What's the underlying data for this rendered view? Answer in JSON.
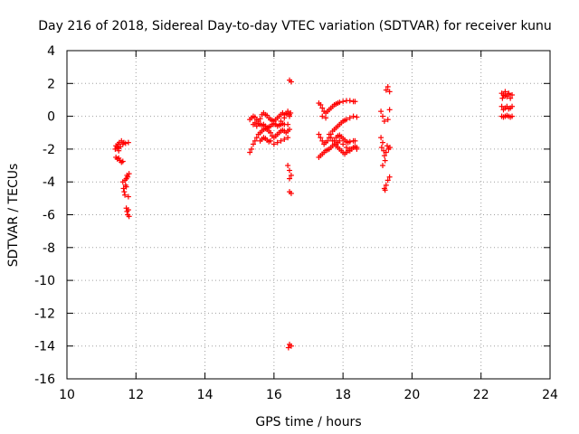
{
  "chart_data": {
    "type": "scatter",
    "title": "Day 216 of 2018, Sidereal Day-to-day VTEC variation (SDTVAR) for receiver kunu",
    "xlabel": "GPS time / hours",
    "ylabel": "SDTVAR / TECUs",
    "xlim": [
      10,
      24
    ],
    "ylim": [
      -16,
      4
    ],
    "x_ticks": [
      10,
      12,
      14,
      16,
      18,
      20,
      22,
      24
    ],
    "y_ticks": [
      -16,
      -14,
      -12,
      -10,
      -8,
      -6,
      -4,
      -2,
      0,
      2,
      4
    ],
    "grid": true,
    "marker": "+",
    "color": "#ff0000",
    "series": [
      {
        "name": "SDTVAR",
        "points": [
          [
            11.4,
            -2.0
          ],
          [
            11.42,
            -1.8
          ],
          [
            11.45,
            -1.9
          ],
          [
            11.48,
            -1.7
          ],
          [
            11.5,
            -1.95
          ],
          [
            11.52,
            -1.6
          ],
          [
            11.55,
            -1.85
          ],
          [
            11.58,
            -1.5
          ],
          [
            11.62,
            -1.7
          ],
          [
            11.65,
            -1.6
          ],
          [
            11.7,
            -1.65
          ],
          [
            11.78,
            -1.6
          ],
          [
            11.5,
            -2.1
          ],
          [
            11.42,
            -2.5
          ],
          [
            11.46,
            -2.6
          ],
          [
            11.5,
            -2.55
          ],
          [
            11.54,
            -2.7
          ],
          [
            11.58,
            -2.8
          ],
          [
            11.62,
            -2.75
          ],
          [
            11.62,
            -4.0
          ],
          [
            11.64,
            -4.4
          ],
          [
            11.66,
            -4.6
          ],
          [
            11.68,
            -3.9
          ],
          [
            11.7,
            -4.2
          ],
          [
            11.72,
            -3.8
          ],
          [
            11.74,
            -3.6
          ],
          [
            11.76,
            -3.7
          ],
          [
            11.78,
            -4.9
          ],
          [
            11.8,
            -3.5
          ],
          [
            11.68,
            -4.8
          ],
          [
            11.72,
            -4.3
          ],
          [
            11.72,
            -5.6
          ],
          [
            11.74,
            -5.8
          ],
          [
            11.76,
            -6.0
          ],
          [
            11.78,
            -5.7
          ],
          [
            11.8,
            -6.1
          ],
          [
            15.3,
            -2.2
          ],
          [
            15.35,
            -2.0
          ],
          [
            15.4,
            -1.7
          ],
          [
            15.45,
            -1.5
          ],
          [
            15.5,
            -1.3
          ],
          [
            15.55,
            -1.1
          ],
          [
            15.6,
            -1.0
          ],
          [
            15.65,
            -0.9
          ],
          [
            15.7,
            -0.8
          ],
          [
            15.75,
            -0.75
          ],
          [
            15.8,
            -0.8
          ],
          [
            15.85,
            -0.9
          ],
          [
            15.9,
            -1.0
          ],
          [
            15.95,
            -1.2
          ],
          [
            16.0,
            -1.3
          ],
          [
            16.05,
            -1.2
          ],
          [
            16.1,
            -1.1
          ],
          [
            16.15,
            -1.0
          ],
          [
            16.2,
            -0.9
          ],
          [
            16.25,
            -0.85
          ],
          [
            16.3,
            -0.9
          ],
          [
            16.35,
            -1.0
          ],
          [
            16.4,
            -0.9
          ],
          [
            16.45,
            -0.8
          ],
          [
            15.4,
            -0.5
          ],
          [
            15.45,
            -0.4
          ],
          [
            15.5,
            -0.6
          ],
          [
            15.55,
            -0.45
          ],
          [
            15.6,
            -0.5
          ],
          [
            15.65,
            -0.55
          ],
          [
            15.7,
            -0.5
          ],
          [
            15.75,
            -0.6
          ],
          [
            15.8,
            -0.7
          ],
          [
            15.85,
            -0.65
          ],
          [
            15.9,
            -0.6
          ],
          [
            15.95,
            -0.5
          ],
          [
            16.0,
            -0.45
          ],
          [
            16.05,
            -0.5
          ],
          [
            16.1,
            -0.6
          ],
          [
            16.15,
            -0.55
          ],
          [
            16.2,
            -0.5
          ],
          [
            16.25,
            -0.45
          ],
          [
            16.3,
            -0.5
          ],
          [
            16.4,
            -0.5
          ],
          [
            15.3,
            -0.2
          ],
          [
            15.35,
            -0.1
          ],
          [
            15.4,
            0.0
          ],
          [
            15.45,
            -0.05
          ],
          [
            15.5,
            -0.2
          ],
          [
            15.55,
            -0.3
          ],
          [
            15.6,
            -0.15
          ],
          [
            15.65,
            0.1
          ],
          [
            15.7,
            0.2
          ],
          [
            15.75,
            0.1
          ],
          [
            15.8,
            0.05
          ],
          [
            15.85,
            -0.1
          ],
          [
            15.9,
            -0.2
          ],
          [
            15.95,
            -0.25
          ],
          [
            16.0,
            -0.3
          ],
          [
            16.05,
            -0.2
          ],
          [
            16.1,
            -0.1
          ],
          [
            16.15,
            0.0
          ],
          [
            16.2,
            0.1
          ],
          [
            16.25,
            0.2
          ],
          [
            16.3,
            0.1
          ],
          [
            16.35,
            0.15
          ],
          [
            16.4,
            0.2
          ],
          [
            16.45,
            0.1
          ],
          [
            15.6,
            -1.5
          ],
          [
            15.65,
            -1.4
          ],
          [
            15.7,
            -1.3
          ],
          [
            15.75,
            -1.35
          ],
          [
            15.8,
            -1.45
          ],
          [
            15.85,
            -1.55
          ],
          [
            15.9,
            -1.5
          ],
          [
            16.0,
            -1.7
          ],
          [
            16.1,
            -1.6
          ],
          [
            16.2,
            -1.5
          ],
          [
            16.3,
            -1.4
          ],
          [
            16.4,
            -1.3
          ],
          [
            16.2,
            -0.3
          ],
          [
            16.3,
            -0.1
          ],
          [
            16.4,
            0.3
          ],
          [
            16.45,
            0.0
          ],
          [
            16.48,
            0.2
          ],
          [
            16.45,
            2.2
          ],
          [
            16.5,
            2.1
          ],
          [
            16.4,
            -3.0
          ],
          [
            16.45,
            -3.3
          ],
          [
            16.5,
            -3.6
          ],
          [
            16.45,
            -3.8
          ],
          [
            16.45,
            -4.6
          ],
          [
            16.5,
            -4.7
          ],
          [
            16.42,
            -14.1
          ],
          [
            16.45,
            -13.9
          ],
          [
            16.5,
            -14.0
          ],
          [
            17.3,
            0.8
          ],
          [
            17.35,
            0.7
          ],
          [
            17.4,
            0.5
          ],
          [
            17.45,
            0.3
          ],
          [
            17.5,
            0.2
          ],
          [
            17.55,
            0.3
          ],
          [
            17.6,
            0.4
          ],
          [
            17.65,
            0.5
          ],
          [
            17.7,
            0.6
          ],
          [
            17.75,
            0.7
          ],
          [
            17.8,
            0.75
          ],
          [
            17.85,
            0.8
          ],
          [
            17.9,
            0.85
          ],
          [
            18.0,
            0.9
          ],
          [
            18.1,
            0.95
          ],
          [
            18.2,
            0.95
          ],
          [
            18.3,
            0.9
          ],
          [
            18.35,
            0.9
          ],
          [
            17.4,
            0.0
          ],
          [
            17.5,
            -0.1
          ],
          [
            17.3,
            -1.1
          ],
          [
            17.35,
            -1.3
          ],
          [
            17.4,
            -1.5
          ],
          [
            17.45,
            -1.7
          ],
          [
            17.5,
            -1.6
          ],
          [
            17.55,
            -1.5
          ],
          [
            17.6,
            -1.3
          ],
          [
            17.65,
            -1.1
          ],
          [
            17.7,
            -0.9
          ],
          [
            17.75,
            -0.8
          ],
          [
            17.8,
            -0.7
          ],
          [
            17.85,
            -0.6
          ],
          [
            17.9,
            -0.5
          ],
          [
            17.95,
            -0.4
          ],
          [
            18.0,
            -0.3
          ],
          [
            18.05,
            -0.25
          ],
          [
            18.1,
            -0.2
          ],
          [
            18.2,
            -0.1
          ],
          [
            18.3,
            0.0
          ],
          [
            18.4,
            -0.05
          ],
          [
            17.3,
            -2.5
          ],
          [
            17.35,
            -2.4
          ],
          [
            17.4,
            -2.3
          ],
          [
            17.45,
            -2.2
          ],
          [
            17.5,
            -2.1
          ],
          [
            17.55,
            -2.05
          ],
          [
            17.6,
            -2.0
          ],
          [
            17.65,
            -1.9
          ],
          [
            17.7,
            -1.8
          ],
          [
            17.75,
            -1.5
          ],
          [
            17.8,
            -1.3
          ],
          [
            17.85,
            -1.2
          ],
          [
            17.9,
            -1.15
          ],
          [
            17.95,
            -1.25
          ],
          [
            18.0,
            -1.35
          ],
          [
            18.05,
            -1.45
          ],
          [
            18.1,
            -1.55
          ],
          [
            18.15,
            -1.6
          ],
          [
            18.2,
            -1.55
          ],
          [
            18.3,
            -1.5
          ],
          [
            18.35,
            -1.5
          ],
          [
            17.6,
            -1.1
          ],
          [
            17.65,
            -1.3
          ],
          [
            17.7,
            -1.5
          ],
          [
            17.75,
            -1.7
          ],
          [
            17.8,
            -1.8
          ],
          [
            17.85,
            -1.9
          ],
          [
            17.9,
            -2.0
          ],
          [
            17.95,
            -2.1
          ],
          [
            18.0,
            -2.2
          ],
          [
            18.05,
            -2.3
          ],
          [
            18.1,
            -2.2
          ],
          [
            18.15,
            -2.1
          ],
          [
            18.2,
            -2.0
          ],
          [
            18.25,
            -2.0
          ],
          [
            18.3,
            -1.9
          ],
          [
            18.35,
            -1.85
          ],
          [
            18.4,
            -1.9
          ],
          [
            17.8,
            -1.7
          ],
          [
            17.85,
            -1.6
          ],
          [
            17.9,
            -1.5
          ],
          [
            18.0,
            -1.7
          ],
          [
            18.1,
            -1.9
          ],
          [
            18.2,
            -2.1
          ],
          [
            18.4,
            -2.0
          ],
          [
            19.1,
            -1.3
          ],
          [
            19.15,
            -1.6
          ],
          [
            19.12,
            -1.9
          ],
          [
            19.18,
            -2.1
          ],
          [
            19.2,
            -2.4
          ],
          [
            19.22,
            -2.7
          ],
          [
            19.15,
            -3.0
          ],
          [
            19.25,
            -2.2
          ],
          [
            19.28,
            -1.8
          ],
          [
            19.32,
            -2.0
          ],
          [
            19.36,
            -1.9
          ],
          [
            19.1,
            0.3
          ],
          [
            19.15,
            0.0
          ],
          [
            19.2,
            -0.3
          ],
          [
            19.3,
            -0.2
          ],
          [
            19.35,
            0.4
          ],
          [
            19.25,
            1.6
          ],
          [
            19.3,
            1.8
          ],
          [
            19.35,
            1.5
          ],
          [
            19.2,
            -4.4
          ],
          [
            19.25,
            -4.2
          ],
          [
            19.3,
            -3.9
          ],
          [
            19.35,
            -3.7
          ],
          [
            19.22,
            -4.5
          ],
          [
            22.6,
            1.4
          ],
          [
            22.65,
            1.3
          ],
          [
            22.7,
            1.5
          ],
          [
            22.75,
            1.2
          ],
          [
            22.8,
            1.4
          ],
          [
            22.85,
            1.1
          ],
          [
            22.9,
            1.3
          ],
          [
            22.62,
            1.1
          ],
          [
            22.7,
            1.25
          ],
          [
            22.8,
            1.35
          ],
          [
            22.6,
            0.6
          ],
          [
            22.65,
            0.4
          ],
          [
            22.7,
            0.5
          ],
          [
            22.75,
            0.6
          ],
          [
            22.8,
            0.45
          ],
          [
            22.85,
            0.5
          ],
          [
            22.9,
            0.6
          ],
          [
            22.6,
            0.0
          ],
          [
            22.65,
            -0.05
          ],
          [
            22.7,
            0.0
          ],
          [
            22.75,
            0.05
          ],
          [
            22.8,
            0.0
          ],
          [
            22.85,
            -0.05
          ],
          [
            22.9,
            0.0
          ]
        ]
      }
    ]
  }
}
